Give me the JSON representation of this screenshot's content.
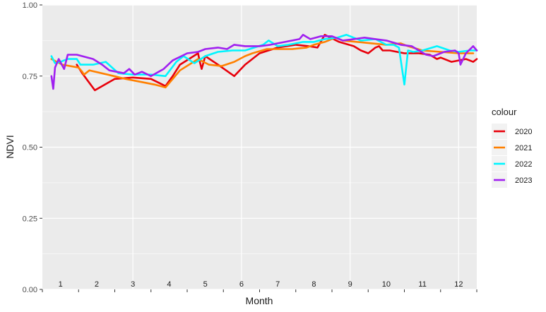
{
  "chart_data": {
    "type": "line",
    "title": "",
    "xlabel": "Month",
    "ylabel": "NDVI",
    "xlim": [
      0.5,
      12.5
    ],
    "ylim": [
      0,
      1
    ],
    "yticks": [
      0,
      0.25,
      0.5,
      0.75,
      1
    ],
    "ytick_labels": [
      "0.00",
      "0.25",
      "0.50",
      "0.75",
      "1.00"
    ],
    "month_labels": [
      "1",
      "2",
      "3",
      "4",
      "5",
      "6",
      "7",
      "8",
      "9",
      "10",
      "11",
      "12"
    ],
    "legend_title": "colour",
    "legend_position": "right",
    "grid": true,
    "series": [
      {
        "name": "2020",
        "color": "#e8000b",
        "points": [
          [
            1.45,
            0.79
          ],
          [
            1.6,
            0.76
          ],
          [
            1.95,
            0.7
          ],
          [
            2.5,
            0.74
          ],
          [
            3.0,
            0.745
          ],
          [
            3.5,
            0.74
          ],
          [
            3.9,
            0.715
          ],
          [
            4.1,
            0.75
          ],
          [
            4.3,
            0.79
          ],
          [
            4.8,
            0.83
          ],
          [
            4.85,
            0.8
          ],
          [
            4.9,
            0.775
          ],
          [
            5.0,
            0.82
          ],
          [
            5.35,
            0.79
          ],
          [
            5.8,
            0.75
          ],
          [
            6.1,
            0.79
          ],
          [
            6.5,
            0.83
          ],
          [
            7.0,
            0.85
          ],
          [
            7.5,
            0.86
          ],
          [
            7.85,
            0.855
          ],
          [
            8.1,
            0.85
          ],
          [
            8.3,
            0.895
          ],
          [
            8.7,
            0.87
          ],
          [
            9.1,
            0.855
          ],
          [
            9.3,
            0.84
          ],
          [
            9.5,
            0.83
          ],
          [
            9.7,
            0.85
          ],
          [
            9.8,
            0.855
          ],
          [
            9.9,
            0.84
          ],
          [
            10.1,
            0.84
          ],
          [
            10.5,
            0.83
          ],
          [
            10.9,
            0.83
          ],
          [
            11.2,
            0.825
          ],
          [
            11.4,
            0.81
          ],
          [
            11.5,
            0.815
          ],
          [
            11.8,
            0.8
          ],
          [
            12.0,
            0.805
          ],
          [
            12.2,
            0.81
          ],
          [
            12.4,
            0.8
          ],
          [
            12.5,
            0.81
          ]
        ]
      },
      {
        "name": "2021",
        "color": "#ff8000",
        "points": [
          [
            0.75,
            0.81
          ],
          [
            0.9,
            0.8
          ],
          [
            1.05,
            0.79
          ],
          [
            1.5,
            0.78
          ],
          [
            1.6,
            0.765
          ],
          [
            1.65,
            0.755
          ],
          [
            1.8,
            0.77
          ],
          [
            2.3,
            0.755
          ],
          [
            2.8,
            0.74
          ],
          [
            3.2,
            0.73
          ],
          [
            3.6,
            0.72
          ],
          [
            3.9,
            0.71
          ],
          [
            4.3,
            0.77
          ],
          [
            4.8,
            0.81
          ],
          [
            5.1,
            0.79
          ],
          [
            5.45,
            0.785
          ],
          [
            5.8,
            0.8
          ],
          [
            6.1,
            0.82
          ],
          [
            6.3,
            0.83
          ],
          [
            6.7,
            0.845
          ],
          [
            7.0,
            0.845
          ],
          [
            7.4,
            0.845
          ],
          [
            7.8,
            0.85
          ],
          [
            8.0,
            0.86
          ],
          [
            8.3,
            0.87
          ],
          [
            8.6,
            0.885
          ],
          [
            8.8,
            0.875
          ],
          [
            9.2,
            0.87
          ],
          [
            9.6,
            0.865
          ],
          [
            10.0,
            0.86
          ],
          [
            10.4,
            0.865
          ],
          [
            10.6,
            0.855
          ],
          [
            11.0,
            0.84
          ],
          [
            11.5,
            0.835
          ],
          [
            12.0,
            0.83
          ],
          [
            12.4,
            0.83
          ]
        ]
      },
      {
        "name": "2022",
        "color": "#00f5ff",
        "points": [
          [
            0.75,
            0.82
          ],
          [
            0.85,
            0.795
          ],
          [
            1.0,
            0.8
          ],
          [
            1.2,
            0.81
          ],
          [
            1.45,
            0.81
          ],
          [
            1.55,
            0.79
          ],
          [
            1.9,
            0.79
          ],
          [
            2.25,
            0.8
          ],
          [
            2.6,
            0.76
          ],
          [
            3.0,
            0.755
          ],
          [
            3.5,
            0.755
          ],
          [
            3.9,
            0.75
          ],
          [
            4.2,
            0.8
          ],
          [
            4.4,
            0.82
          ],
          [
            4.7,
            0.795
          ],
          [
            5.0,
            0.82
          ],
          [
            5.35,
            0.835
          ],
          [
            5.75,
            0.84
          ],
          [
            6.1,
            0.84
          ],
          [
            6.6,
            0.86
          ],
          [
            6.75,
            0.875
          ],
          [
            7.0,
            0.855
          ],
          [
            7.3,
            0.86
          ],
          [
            7.5,
            0.865
          ],
          [
            7.7,
            0.87
          ],
          [
            8.0,
            0.87
          ],
          [
            8.3,
            0.88
          ],
          [
            8.65,
            0.885
          ],
          [
            8.9,
            0.895
          ],
          [
            9.3,
            0.875
          ],
          [
            9.7,
            0.88
          ],
          [
            10.0,
            0.86
          ],
          [
            10.2,
            0.86
          ],
          [
            10.35,
            0.85
          ],
          [
            10.5,
            0.72
          ],
          [
            10.6,
            0.84
          ],
          [
            10.75,
            0.835
          ],
          [
            11.0,
            0.84
          ],
          [
            11.4,
            0.855
          ],
          [
            11.75,
            0.84
          ],
          [
            12.0,
            0.835
          ],
          [
            12.3,
            0.84
          ],
          [
            12.5,
            0.84
          ]
        ]
      },
      {
        "name": "2023",
        "color": "#a020f0",
        "points": [
          [
            0.75,
            0.75
          ],
          [
            0.8,
            0.705
          ],
          [
            0.85,
            0.78
          ],
          [
            0.95,
            0.81
          ],
          [
            1.1,
            0.775
          ],
          [
            1.2,
            0.825
          ],
          [
            1.45,
            0.825
          ],
          [
            1.9,
            0.81
          ],
          [
            2.15,
            0.79
          ],
          [
            2.35,
            0.77
          ],
          [
            2.75,
            0.76
          ],
          [
            2.9,
            0.775
          ],
          [
            3.05,
            0.755
          ],
          [
            3.25,
            0.765
          ],
          [
            3.5,
            0.75
          ],
          [
            3.85,
            0.775
          ],
          [
            4.1,
            0.805
          ],
          [
            4.5,
            0.83
          ],
          [
            4.8,
            0.835
          ],
          [
            5.0,
            0.845
          ],
          [
            5.35,
            0.85
          ],
          [
            5.6,
            0.845
          ],
          [
            5.8,
            0.86
          ],
          [
            6.1,
            0.855
          ],
          [
            6.5,
            0.855
          ],
          [
            6.8,
            0.86
          ],
          [
            7.2,
            0.87
          ],
          [
            7.6,
            0.88
          ],
          [
            7.7,
            0.895
          ],
          [
            7.9,
            0.88
          ],
          [
            8.2,
            0.89
          ],
          [
            8.5,
            0.89
          ],
          [
            8.8,
            0.875
          ],
          [
            9.1,
            0.88
          ],
          [
            9.4,
            0.885
          ],
          [
            9.7,
            0.88
          ],
          [
            10.0,
            0.875
          ],
          [
            10.4,
            0.86
          ],
          [
            10.7,
            0.855
          ],
          [
            10.9,
            0.84
          ],
          [
            11.1,
            0.825
          ],
          [
            11.3,
            0.82
          ],
          [
            11.6,
            0.835
          ],
          [
            11.9,
            0.84
          ],
          [
            12.0,
            0.83
          ],
          [
            12.05,
            0.79
          ],
          [
            12.2,
            0.83
          ],
          [
            12.4,
            0.855
          ],
          [
            12.5,
            0.84
          ]
        ]
      }
    ]
  }
}
